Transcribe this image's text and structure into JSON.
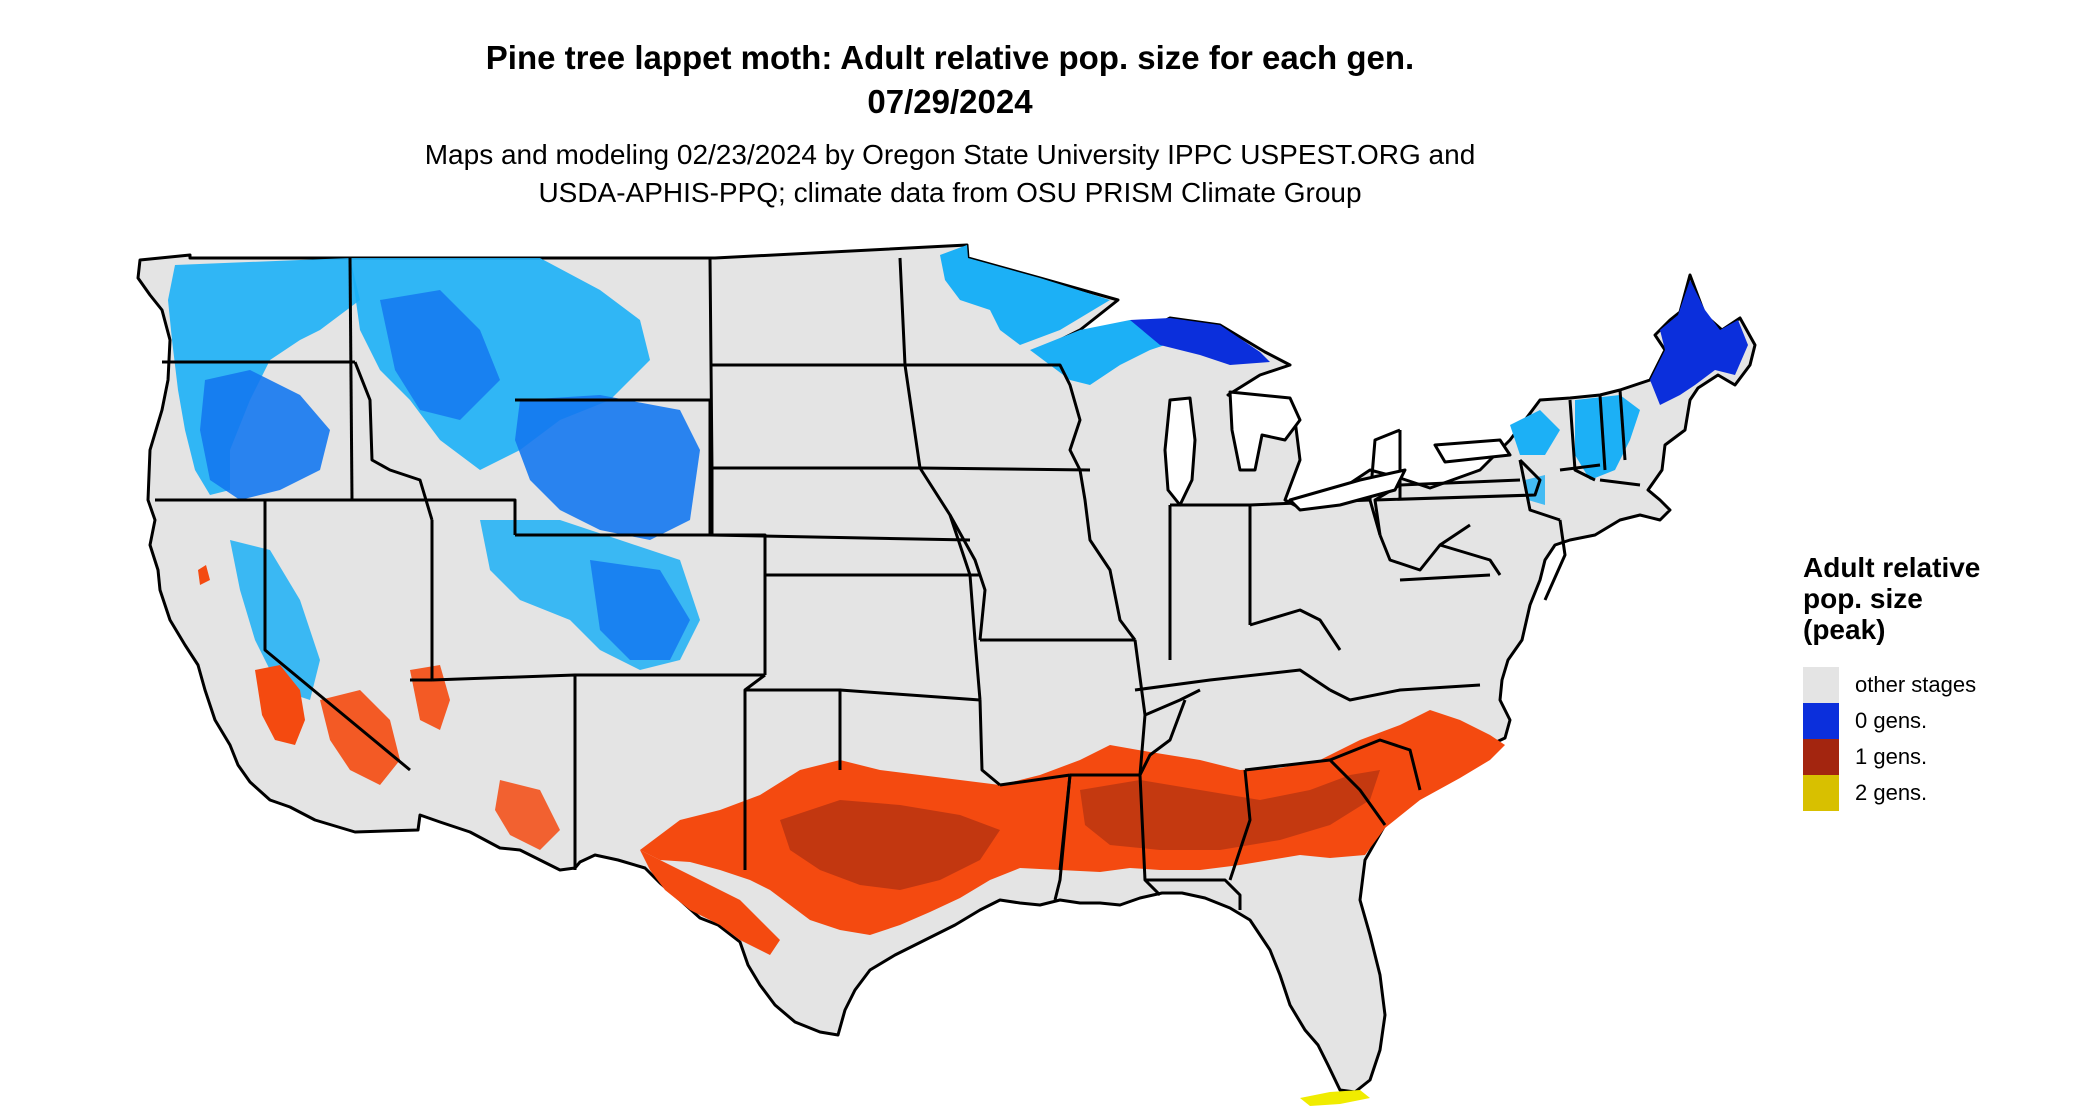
{
  "title": {
    "line1": "Pine tree lappet moth: Adult relative pop. size for each gen.",
    "line2": "07/29/2024"
  },
  "subtitle": {
    "line1": "Maps and modeling 02/23/2024 by Oregon State University IPPC USPEST.ORG and",
    "line2": "USDA-APHIS-PPQ; climate data from OSU PRISM Climate Group"
  },
  "legend": {
    "title_lines": [
      "Adult relative",
      "pop. size",
      "(peak)"
    ],
    "items": [
      {
        "label": "other stages",
        "color": "#e4e4e4"
      },
      {
        "label": "0 gens.",
        "color": "#0b2fdc"
      },
      {
        "label": "1 gens.",
        "color": "#a3250f"
      },
      {
        "label": "2 gens.",
        "color": "#d8c000"
      }
    ]
  },
  "colors": {
    "land": "#e4e4e4",
    "gens0_light": "#1cb0f6",
    "gens0_mid": "#1478f0",
    "gens0_dark": "#0b2fdc",
    "gens1_bright": "#f44a10",
    "gens1_dark": "#b83410",
    "gens2": "#f0ec00",
    "border": "#000000"
  }
}
